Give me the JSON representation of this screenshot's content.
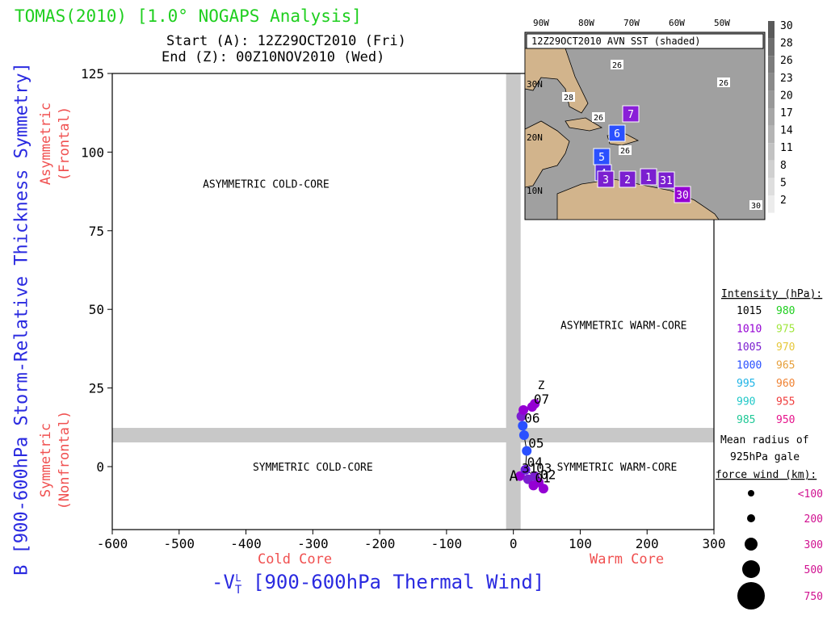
{
  "header": {
    "title": "TOMAS(2010) [1.0° NOGAPS Analysis]",
    "start": "Start (A): 12Z29OCT2010 (Fri)",
    "end": "End (Z): 00Z10NOV2010 (Wed)"
  },
  "axes": {
    "ylabel": "B [900-600hPa Storm-Relative Thickness Symmetry]",
    "y_upper": "Asymmetric",
    "y_upper2": "(Frontal)",
    "y_lower": "Symmetric",
    "y_lower2": "(Nonfrontal)",
    "xlabel": "-V",
    "xlabel_sub": "T",
    "xlabel_sup": "L",
    "xlabel_rest": " [900-600hPa Thermal Wind]",
    "x_left": "Cold Core",
    "x_right": "Warm Core"
  },
  "chart_data": {
    "type": "scatter",
    "title": "TOMAS(2010) [1.0° NOGAPS Analysis]",
    "xlabel": "-VTL [900-600hPa Thermal Wind]",
    "ylabel": "B [900-600hPa Storm-Relative Thickness Symmetry]",
    "xlim": [
      -600,
      300
    ],
    "ylim": [
      -10,
      125
    ],
    "x_ticks": [
      "-600",
      "-500",
      "-400",
      "-300",
      "-200",
      "-100",
      "0",
      "100",
      "200",
      "300"
    ],
    "y_ticks": [
      "125",
      "100",
      "75",
      "50",
      "25",
      "0"
    ],
    "quadrants": [
      {
        "label": "ASYMMETRIC COLD-CORE",
        "x": -370,
        "y": 90
      },
      {
        "label": "ASYMMETRIC WARM-CORE",
        "x": 165,
        "y": 45
      },
      {
        "label": "SYMMETRIC COLD-CORE",
        "x": -300,
        "y": 0
      },
      {
        "label": "SYMMETRIC WARM-CORE",
        "x": 155,
        "y": 0
      }
    ],
    "reference_lines": {
      "x": 0,
      "y": 10
    },
    "track": [
      {
        "x": 10,
        "y": -3,
        "color": "#9400d3",
        "label": "31"
      },
      {
        "x": 22,
        "y": -4,
        "color": "#7b1fd0",
        "label": ""
      },
      {
        "x": 30,
        "y": -6,
        "color": "#9400d3",
        "label": "01"
      },
      {
        "x": 38,
        "y": -5,
        "color": "#9400d3",
        "label": "02"
      },
      {
        "x": 45,
        "y": -7,
        "color": "#9400d3",
        "label": ""
      },
      {
        "x": 32,
        "y": -3,
        "color": "#7b1fd0",
        "label": "03"
      },
      {
        "x": 18,
        "y": -1,
        "color": "#6a1fd8",
        "label": "04"
      },
      {
        "x": 20,
        "y": 5,
        "color": "#2a50ff",
        "label": "05"
      },
      {
        "x": 16,
        "y": 10,
        "color": "#2a50ff",
        "label": ""
      },
      {
        "x": 14,
        "y": 13,
        "color": "#2a50ff",
        "label": "06"
      },
      {
        "x": 12,
        "y": 16,
        "color": "#7b1fd0",
        "label": ""
      },
      {
        "x": 15,
        "y": 18,
        "color": "#9400d3",
        "label": ""
      },
      {
        "x": 28,
        "y": 19,
        "color": "#9400d3",
        "label": "07"
      },
      {
        "x": 32,
        "y": 20,
        "color": "#9400d3",
        "label": ""
      }
    ],
    "start_label": "A",
    "end_label": "Z"
  },
  "inset": {
    "title": "12Z29OCT2010 AVN SST (shaded)",
    "lon_labels": [
      "90W",
      "80W",
      "70W",
      "60W",
      "50W"
    ],
    "lat_labels": [
      "30N",
      "20N",
      "10N"
    ],
    "sst_labels": [
      "26",
      "26",
      "28",
      "26",
      "26",
      "30"
    ],
    "colorbar": [
      "30",
      "28",
      "26",
      "23",
      "20",
      "17",
      "14",
      "11",
      "8",
      "5",
      "2"
    ],
    "boxes": [
      {
        "label": "7",
        "color": "#8a1fd8"
      },
      {
        "label": "6",
        "color": "#2a50ff"
      },
      {
        "label": "5",
        "color": "#2a50ff"
      },
      {
        "label": "4",
        "color": "#5a2ae0"
      },
      {
        "label": "3",
        "color": "#7b1fd0"
      },
      {
        "label": "2",
        "color": "#7b1fd0"
      },
      {
        "label": "1",
        "color": "#7b1fd0"
      },
      {
        "label": "31",
        "color": "#7b1fd0"
      },
      {
        "label": "30",
        "color": "#9400d3"
      }
    ]
  },
  "legend": {
    "intensity_title": "Intensity (hPa):",
    "intensity": [
      {
        "left": "1015",
        "lc": "#000000",
        "right": "980",
        "rc": "#1fcf1f"
      },
      {
        "left": "1010",
        "lc": "#9400d3",
        "right": "975",
        "rc": "#a0e63c"
      },
      {
        "left": "1005",
        "lc": "#7b1fd0",
        "right": "970",
        "rc": "#e6c83c"
      },
      {
        "left": "1000",
        "lc": "#2a50ff",
        "right": "965",
        "rc": "#e6a03c"
      },
      {
        "left": "995",
        "lc": "#1fb4e6",
        "right": "960",
        "rc": "#f08232"
      },
      {
        "left": "990",
        "lc": "#1fc8c8",
        "right": "955",
        "rc": "#f03c3c"
      },
      {
        "left": "985",
        "lc": "#1fc896",
        "right": "950",
        "rc": "#e6148c"
      }
    ],
    "radius_title1": "Mean radius of",
    "radius_title2": "925hPa gale",
    "radius_title3": "force wind (km):",
    "radius": [
      {
        "label": "<100"
      },
      {
        "label": "200"
      },
      {
        "label": "300"
      },
      {
        "label": "500"
      },
      {
        "label": "750"
      }
    ]
  }
}
